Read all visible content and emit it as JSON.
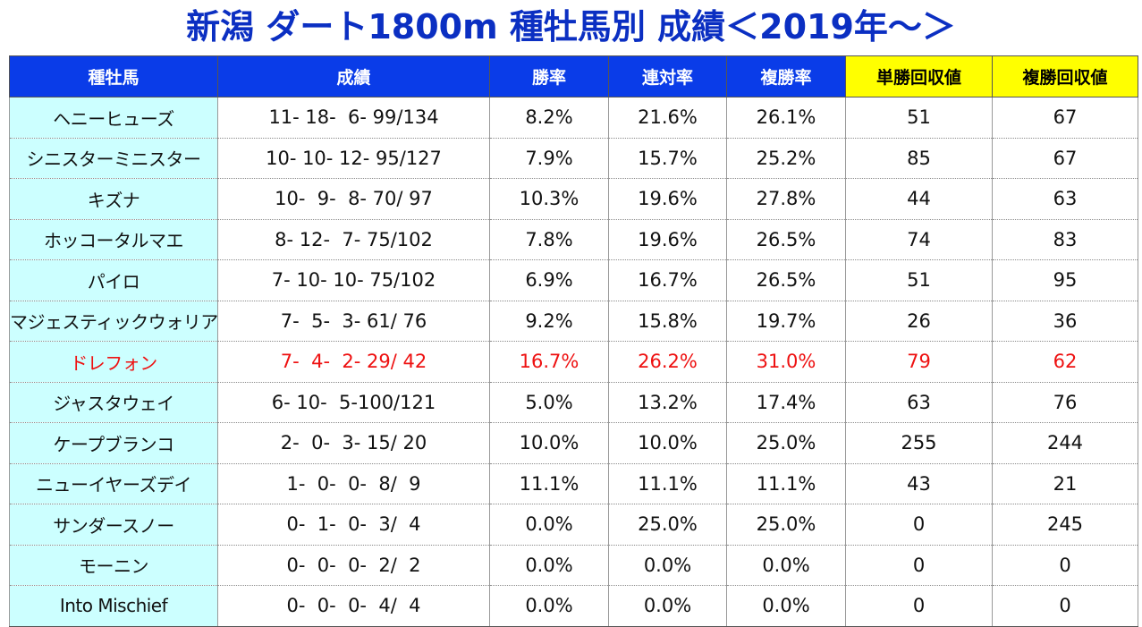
{
  "title": "新潟 ダート1800m 種牡馬別 成績＜2019年～＞",
  "headers": [
    "種牡馬",
    "成績",
    "勝率",
    "連対率",
    "複勝率",
    "単勝回収値",
    "複勝回収値"
  ],
  "rows": [
    {
      "sire": "ヘニーヒューズ",
      "record": "11- 18-  6- 99/134",
      "win_rate": "8.2%",
      "quinella_rate": "21.6%",
      "place_rate": "26.1%",
      "win_return": "51",
      "place_return": "67",
      "highlight": false
    },
    {
      "sire": "シニスターミニスター",
      "record": "10- 10- 12- 95/127",
      "win_rate": "7.9%",
      "quinella_rate": "15.7%",
      "place_rate": "25.2%",
      "win_return": "85",
      "place_return": "67",
      "highlight": false
    },
    {
      "sire": "キズナ",
      "record": "10-  9-  8- 70/ 97",
      "win_rate": "10.3%",
      "quinella_rate": "19.6%",
      "place_rate": "27.8%",
      "win_return": "44",
      "place_return": "63",
      "highlight": false
    },
    {
      "sire": "ホッコータルマエ",
      "record": "8- 12-  7- 75/102",
      "win_rate": "7.8%",
      "quinella_rate": "19.6%",
      "place_rate": "26.5%",
      "win_return": "74",
      "place_return": "83",
      "highlight": false
    },
    {
      "sire": "パイロ",
      "record": "7- 10- 10- 75/102",
      "win_rate": "6.9%",
      "quinella_rate": "16.7%",
      "place_rate": "26.5%",
      "win_return": "51",
      "place_return": "95",
      "highlight": false
    },
    {
      "sire": "マジェスティックウォリアー",
      "record": "7-  5-  3- 61/ 76",
      "win_rate": "9.2%",
      "quinella_rate": "15.8%",
      "place_rate": "19.7%",
      "win_return": "26",
      "place_return": "36",
      "highlight": false
    },
    {
      "sire": "ドレフォン",
      "record": "7-  4-  2- 29/ 42",
      "win_rate": "16.7%",
      "quinella_rate": "26.2%",
      "place_rate": "31.0%",
      "win_return": "79",
      "place_return": "62",
      "highlight": true
    },
    {
      "sire": "ジャスタウェイ",
      "record": "6- 10-  5-100/121",
      "win_rate": "5.0%",
      "quinella_rate": "13.2%",
      "place_rate": "17.4%",
      "win_return": "63",
      "place_return": "76",
      "highlight": false
    },
    {
      "sire": "ケープブランコ",
      "record": "2-  0-  3- 15/ 20",
      "win_rate": "10.0%",
      "quinella_rate": "10.0%",
      "place_rate": "25.0%",
      "win_return": "255",
      "place_return": "244",
      "highlight": false
    },
    {
      "sire": "ニューイヤーズデイ",
      "record": "1-  0-  0-  8/  9",
      "win_rate": "11.1%",
      "quinella_rate": "11.1%",
      "place_rate": "11.1%",
      "win_return": "43",
      "place_return": "21",
      "highlight": false
    },
    {
      "sire": "サンダースノー",
      "record": "0-  1-  0-  3/  4",
      "win_rate": "0.0%",
      "quinella_rate": "25.0%",
      "place_rate": "25.0%",
      "win_return": "0",
      "place_return": "245",
      "highlight": false
    },
    {
      "sire": "モーニン",
      "record": "0-  0-  0-  2/  2",
      "win_rate": "0.0%",
      "quinella_rate": "0.0%",
      "place_rate": "0.0%",
      "win_return": "0",
      "place_return": "0",
      "highlight": false
    },
    {
      "sire": "Into Mischief",
      "record": "0-  0-  0-  4/  4",
      "win_rate": "0.0%",
      "quinella_rate": "0.0%",
      "place_rate": "0.0%",
      "win_return": "0",
      "place_return": "0",
      "highlight": false
    }
  ],
  "colors": {
    "title": "#0b2fc2",
    "header_blue": "#0a3ce8",
    "header_yellow": "#ffff00",
    "sire_column_bg": "#ccffff",
    "highlight_text": "#ee1111"
  }
}
